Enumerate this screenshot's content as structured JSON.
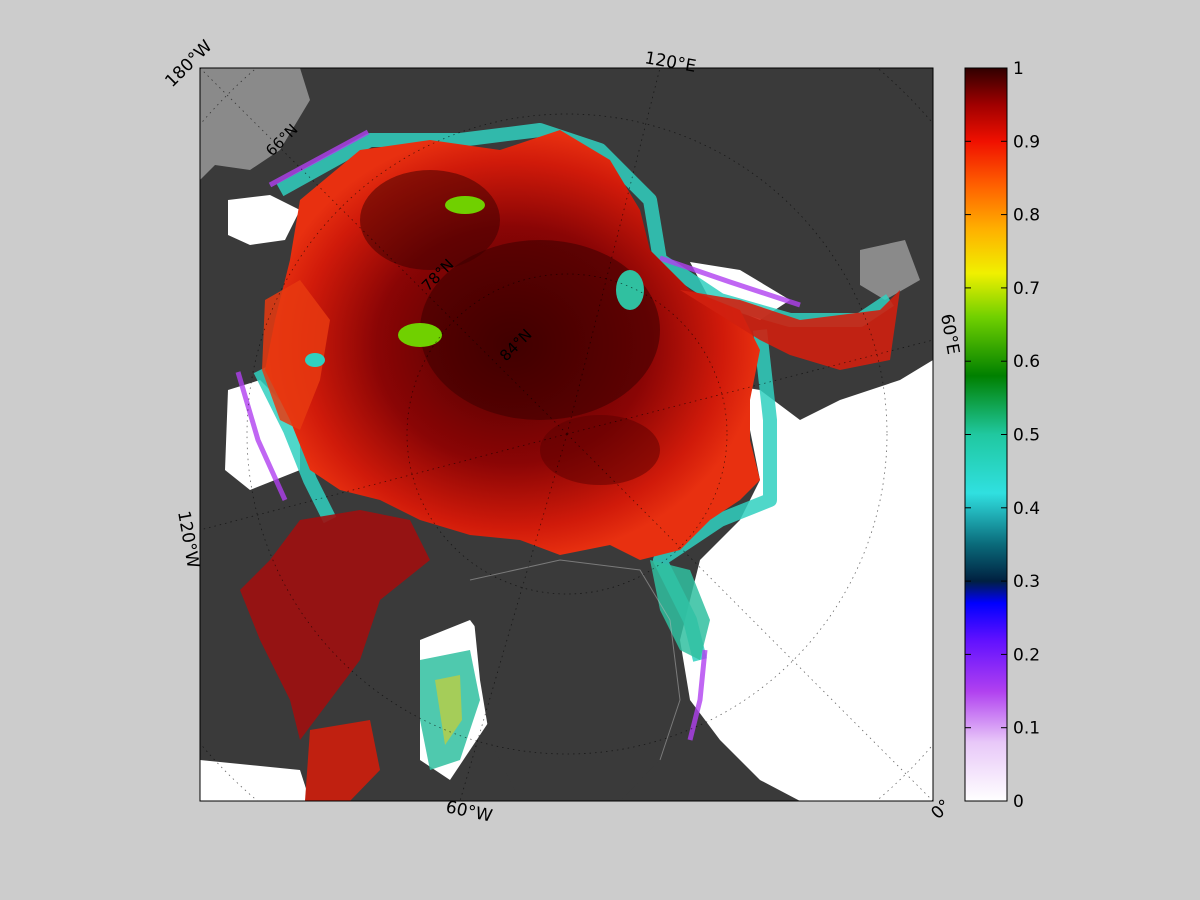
{
  "map": {
    "projection": "north-polar-stereographic",
    "meridian_labels": [
      "180°W",
      "120°E",
      "60°E",
      "0°",
      "60°W",
      "120°W"
    ],
    "parallel_labels": [
      "66°N",
      "78°N",
      "84°N"
    ]
  },
  "colorbar": {
    "min": 0,
    "max": 1,
    "ticks": [
      "0",
      "0.1",
      "0.2",
      "0.3",
      "0.4",
      "0.5",
      "0.6",
      "0.7",
      "0.8",
      "0.9",
      "1"
    ],
    "colormap": "jet-like (white to purple to blue to cyan to green to yellow to orange to red to dark red)"
  },
  "colors": {
    "figure_background": "#cccccc",
    "land": "#3a3a3a",
    "open_ocean": "#ffffff",
    "no_data": "#8a8a8a",
    "ice_high": "#5a0000",
    "ice_mid": "#e01010"
  }
}
